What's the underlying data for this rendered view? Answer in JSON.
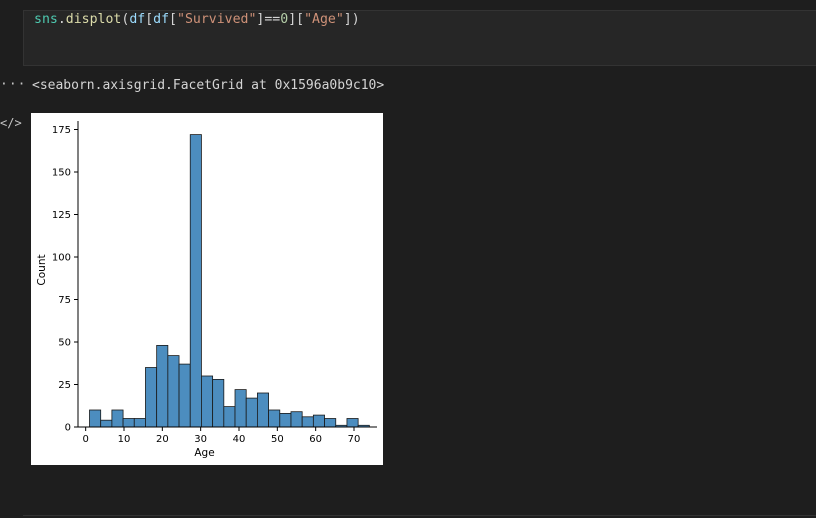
{
  "cell": {
    "code_tokens": [
      {
        "text": "sns",
        "cls": "tok-fn"
      },
      {
        "text": ".",
        "cls": "tok-op"
      },
      {
        "text": "displot",
        "cls": "tok-call"
      },
      {
        "text": "(",
        "cls": "tok-op"
      },
      {
        "text": "df",
        "cls": "tok-var"
      },
      {
        "text": "[",
        "cls": "tok-op"
      },
      {
        "text": "df",
        "cls": "tok-var"
      },
      {
        "text": "[",
        "cls": "tok-op"
      },
      {
        "text": "\"Survived\"",
        "cls": "tok-str"
      },
      {
        "text": "]==",
        "cls": "tok-op"
      },
      {
        "text": "0",
        "cls": "tok-num"
      },
      {
        "text": "][",
        "cls": "tok-op"
      },
      {
        "text": "\"Age\"",
        "cls": "tok-str"
      },
      {
        "text": "])",
        "cls": "tok-op"
      }
    ]
  },
  "output": {
    "repr_text": "<seaborn.axisgrid.FacetGrid at 0x1596a0b9c10>",
    "gutter_dots": "···",
    "gutter_icon": "</>"
  },
  "colors": {
    "bar_fill": "#4c8dbf",
    "bar_edge": "#1a1a1a",
    "background": "#1e1e1e",
    "plot_bg": "#ffffff"
  },
  "chart_data": {
    "type": "bar",
    "title": "",
    "xlabel": "Age",
    "ylabel": "Count",
    "xlim": [
      -2,
      76
    ],
    "ylim": [
      0,
      180
    ],
    "x_ticks": [
      0,
      10,
      20,
      30,
      40,
      50,
      60,
      70
    ],
    "y_ticks": [
      0,
      25,
      50,
      75,
      100,
      125,
      150,
      175
    ],
    "bin_width": 2.92,
    "bin_edges_start": 1.0,
    "values": [
      10,
      4,
      10,
      5,
      5,
      35,
      48,
      42,
      37,
      172,
      30,
      28,
      12,
      22,
      17,
      20,
      10,
      8,
      9,
      6,
      7,
      5,
      1,
      5,
      1
    ],
    "grid": false,
    "legend": "none"
  }
}
